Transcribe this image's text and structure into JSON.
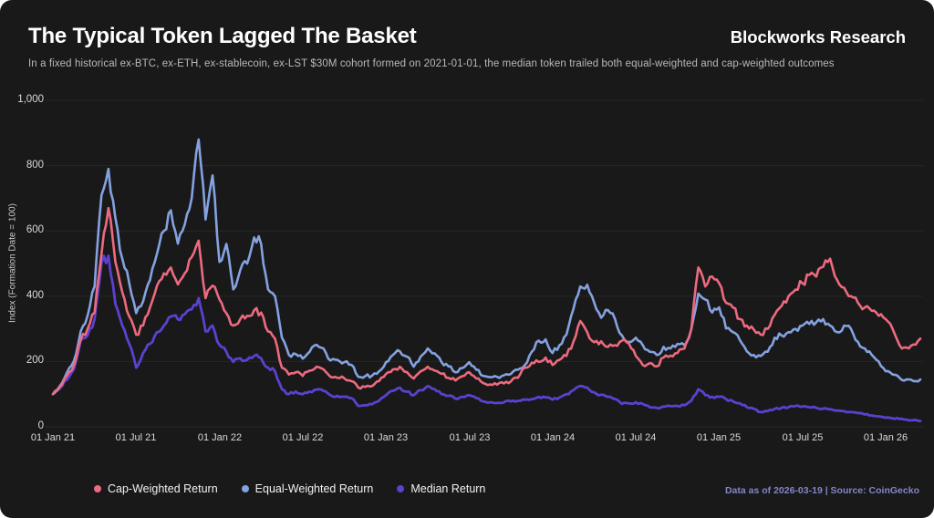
{
  "header": {
    "title": "The Typical Token Lagged The Basket",
    "brand": "Blockworks Research",
    "subtitle": "In a fixed historical ex-BTC, ex-ETH, ex-stablecoin, ex-LST $30M cohort formed on 2021-01-01, the median token trailed both equal-weighted and cap-weighted outcomes"
  },
  "footer": {
    "source_note": "Data as of 2026-03-19 | Source: CoinGecko"
  },
  "colors": {
    "background": "#191919",
    "grid": "#272727",
    "cap_weighted": "#ed6a80",
    "equal_weighted": "#84a2e1",
    "median": "#5b41d0",
    "source_text": "#8286c9"
  },
  "chart_data": {
    "type": "line",
    "title": "The Typical Token Lagged The Basket",
    "xlabel": "",
    "ylabel": "Index (Formation Date = 100)",
    "ylim": [
      0,
      1000
    ],
    "yticks": [
      0,
      200,
      400,
      600,
      800,
      1000
    ],
    "ytick_labels": [
      "0",
      "200",
      "400",
      "600",
      "800",
      "1,000"
    ],
    "xtick_labels": [
      "01 Jan 21",
      "01 Jul 21",
      "01 Jan 22",
      "01 Jul 22",
      "01 Jan 23",
      "01 Jul 23",
      "01 Jan 24",
      "01 Jul 24",
      "01 Jan 25",
      "01 Jul 25",
      "01 Jan 26"
    ],
    "xtick_months": [
      0,
      6,
      12,
      18,
      24,
      30,
      36,
      42,
      48,
      54,
      60
    ],
    "x_unit": "half-month steps since formation 2021-01-01, ending 2026-03-19",
    "grid": "horizontal",
    "legend_position": "bottom",
    "formation_value": 100,
    "series": [
      {
        "name": "Cap-Weighted Return",
        "color": "#ed6a80",
        "values": [
          100,
          122,
          155,
          186,
          266,
          300,
          350,
          530,
          670,
          505,
          412,
          338,
          282,
          310,
          366,
          432,
          470,
          488,
          436,
          470,
          520,
          570,
          394,
          432,
          390,
          348,
          310,
          330,
          340,
          357,
          350,
          292,
          270,
          181,
          160,
          167,
          156,
          172,
          184,
          176,
          153,
          150,
          148,
          140,
          120,
          122,
          125,
          140,
          162,
          176,
          184,
          168,
          148,
          170,
          184,
          172,
          162,
          150,
          142,
          155,
          167,
          148,
          134,
          130,
          129,
          133,
          139,
          150,
          181,
          196,
          199,
          212,
          189,
          205,
          217,
          260,
          324,
          290,
          259,
          262,
          245,
          250,
          264,
          255,
          217,
          189,
          195,
          185,
          212,
          218,
          226,
          240,
          300,
          488,
          430,
          460,
          440,
          380,
          365,
          330,
          310,
          298,
          282,
          300,
          343,
          370,
          400,
          420,
          440,
          465,
          460,
          490,
          515,
          450,
          426,
          400,
          380,
          366,
          355,
          340,
          330,
          300,
          250,
          243,
          252,
          270
        ]
      },
      {
        "name": "Equal-Weighted Return",
        "color": "#84a2e1",
        "values": [
          100,
          125,
          165,
          200,
          292,
          340,
          430,
          710,
          790,
          640,
          515,
          440,
          348,
          384,
          450,
          530,
          600,
          663,
          561,
          620,
          700,
          880,
          635,
          770,
          505,
          560,
          421,
          480,
          500,
          580,
          560,
          421,
          400,
          273,
          220,
          223,
          209,
          230,
          251,
          240,
          203,
          205,
          198,
          190,
          153,
          155,
          157,
          170,
          198,
          220,
          231,
          215,
          184,
          215,
          240,
          225,
          198,
          185,
          167,
          180,
          198,
          175,
          156,
          152,
          153,
          158,
          162,
          175,
          189,
          230,
          264,
          268,
          226,
          250,
          282,
          360,
          430,
          435,
          380,
          334,
          357,
          330,
          280,
          260,
          273,
          250,
          230,
          220,
          245,
          240,
          254,
          250,
          300,
          408,
          390,
          350,
          366,
          301,
          290,
          265,
          231,
          220,
          217,
          230,
          273,
          280,
          290,
          300,
          310,
          315,
          320,
          330,
          310,
          290,
          310,
          300,
          260,
          240,
          220,
          200,
          170,
          160,
          150,
          145,
          140,
          145
        ]
      },
      {
        "name": "Median Return",
        "color": "#5b41d0",
        "values": [
          100,
          118,
          143,
          175,
          264,
          280,
          330,
          501,
          524,
          376,
          310,
          254,
          181,
          226,
          254,
          290,
          310,
          338,
          329,
          345,
          360,
          394,
          292,
          310,
          251,
          230,
          199,
          210,
          205,
          217,
          210,
          181,
          170,
          115,
          100,
          108,
          100,
          108,
          114,
          110,
          97,
          95,
          92,
          88,
          64,
          66,
          69,
          80,
          97,
          110,
          120,
          108,
          97,
          112,
          125,
          115,
          100,
          95,
          86,
          92,
          97,
          88,
          78,
          75,
          73,
          75,
          78,
          80,
          83,
          85,
          92,
          90,
          83,
          90,
          100,
          112,
          125,
          120,
          106,
          98,
          92,
          85,
          70,
          72,
          75,
          70,
          60,
          58,
          62,
          63,
          64,
          66,
          80,
          115,
          97,
          92,
          92,
          85,
          78,
          72,
          60,
          55,
          45,
          48,
          55,
          58,
          60,
          64,
          62,
          60,
          58,
          56,
          54,
          50,
          48,
          45,
          42,
          38,
          35,
          32,
          28,
          26,
          24,
          22,
          20,
          18
        ]
      }
    ]
  }
}
